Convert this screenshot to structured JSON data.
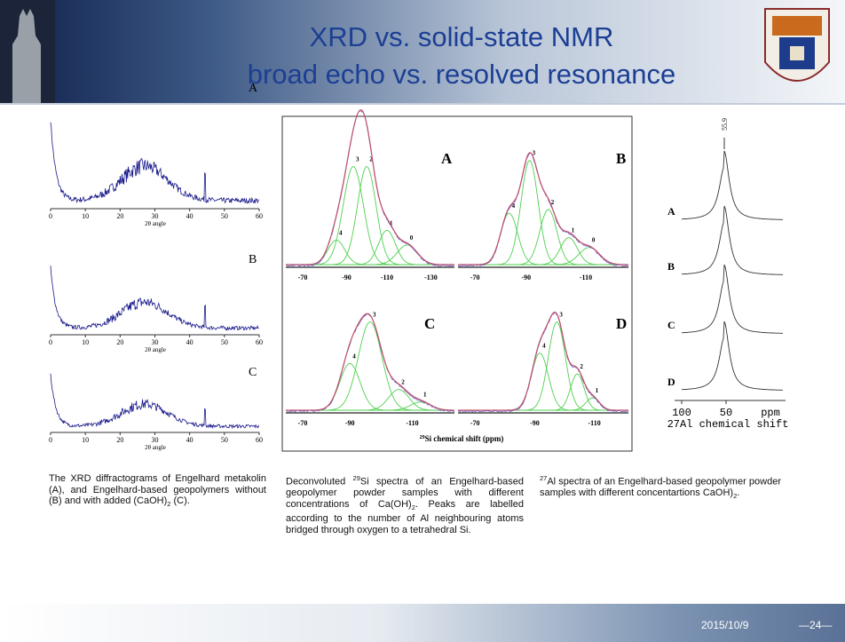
{
  "header": {
    "title_line1": "XRD vs. solid-state NMR",
    "title_line2": "broad echo vs. resolved resonance"
  },
  "xrd_figure": {
    "x_ticks": [
      "0",
      "10",
      "20",
      "30",
      "40",
      "50",
      "60"
    ],
    "axis_label": "2θ angle",
    "panels": [
      "A",
      "B",
      "C"
    ]
  },
  "si_nmr_figure": {
    "axis_label_sup": "29",
    "axis_label": "Si chemical shift (ppm)",
    "panels": [
      {
        "label": "A",
        "x_ticks": [
          "-70",
          "-90",
          "-110",
          "-130"
        ],
        "peak_labels": [
          "4",
          "3",
          "2",
          "1",
          "0"
        ]
      },
      {
        "label": "B",
        "x_ticks": [
          "-70",
          "-90",
          "-110"
        ],
        "peak_labels": [
          "4",
          "3",
          "2",
          "1",
          "0"
        ]
      },
      {
        "label": "C",
        "x_ticks": [
          "-70",
          "-90",
          "-110"
        ],
        "peak_labels": [
          "4",
          "3",
          "2",
          "1"
        ]
      },
      {
        "label": "D",
        "x_ticks": [
          "-70",
          "-90",
          "-110"
        ],
        "peak_labels": [
          "4",
          "3",
          "2",
          "1"
        ]
      }
    ]
  },
  "al_nmr_figure": {
    "peak_label": "55.9",
    "traces": [
      "A",
      "B",
      "C",
      "D"
    ],
    "x_ticks": [
      "100",
      "50"
    ],
    "unit": "ppm",
    "axis_label": "27Al chemical shift"
  },
  "captions": [
    [
      {
        "text": "The XRD diffractograms of Engelhard metakolin (A), and Engelhard-based geopolymers without (B) and with added (CaOH)"
      },
      {
        "sub": "2"
      },
      {
        "text": " (C)."
      }
    ],
    [
      {
        "text": "Deconvoluted "
      },
      {
        "sup": "29"
      },
      {
        "text": "Si spectra of an Engelhard-based geopolymer powder samples with different concentrations of Ca(OH)"
      },
      {
        "sub": "2"
      },
      {
        "text": ". Peaks are labelled according to the number of Al neighbouring atoms bridged through oxygen to a tetrahedral Si."
      }
    ],
    [
      {
        "sup": "27"
      },
      {
        "text": "Al spectra of an Engelhard-based geopolymer powder samples with different concentartions CaOH)"
      },
      {
        "sub": "2"
      },
      {
        "text": "."
      }
    ]
  ],
  "footer": {
    "date": "2015/10/9",
    "page": "—24—"
  }
}
